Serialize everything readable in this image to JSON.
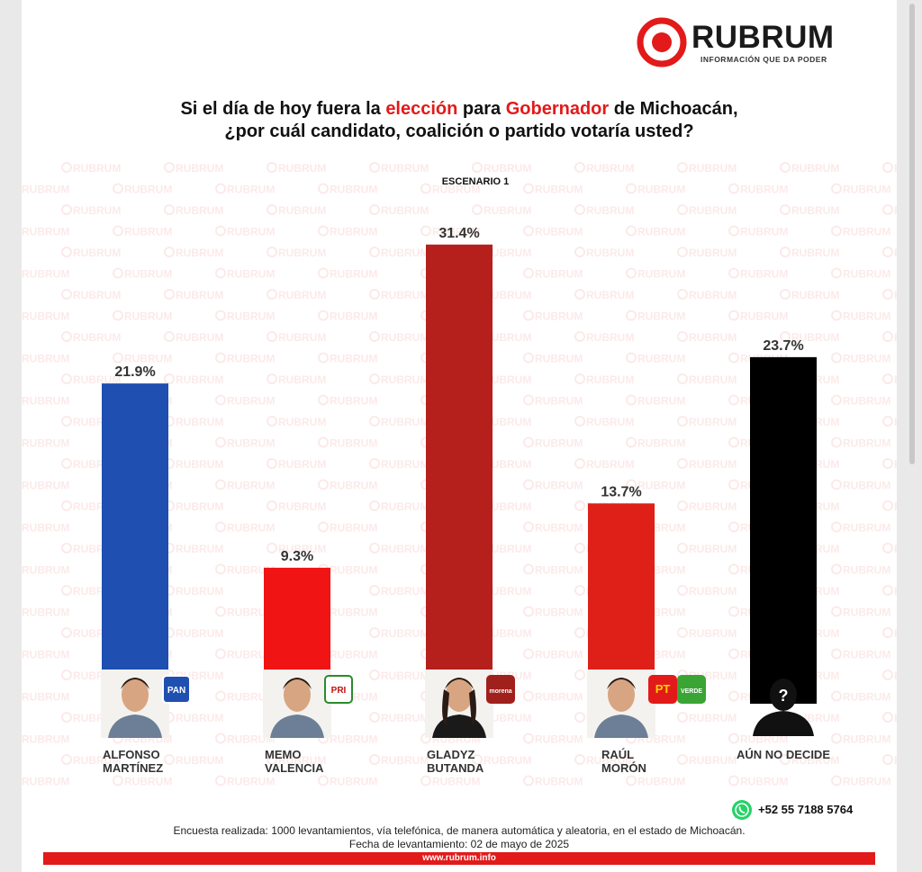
{
  "brand": {
    "name": "RUBRUM",
    "tagline": "INFORMACIÓN QUE DA PODER",
    "color": "#e21a1a"
  },
  "question": {
    "line1_pre": "Si el día de hoy fuera la ",
    "line1_hl1": "elección",
    "line1_mid": " para ",
    "line1_hl2": "Gobernador",
    "line1_post": " de Michoacán,",
    "line2": "¿por cuál candidato, coalición o partido votaría usted?"
  },
  "scenario": "ESCENARIO 1",
  "chart_data": {
    "type": "bar",
    "categories": [
      "ALFONSO MARTÍNEZ",
      "MEMO VALENCIA",
      "GLADYZ BUTANDA",
      "RAÚL MORÓN",
      "AÚN NO DECIDE"
    ],
    "values": [
      21.9,
      9.3,
      31.4,
      13.7,
      23.7
    ],
    "value_labels": [
      "21.9%",
      "9.3%",
      "31.4%",
      "13.7%",
      "23.7%"
    ],
    "name_lines": [
      [
        "ALFONSO",
        "MARTÍNEZ"
      ],
      [
        "MEMO",
        "VALENCIA"
      ],
      [
        "GLADYZ",
        "BUTANDA"
      ],
      [
        "RAÚL",
        "MORÓN"
      ],
      [
        "AÚN NO DECIDE"
      ]
    ],
    "colors": [
      "#1f4fb0",
      "#f01414",
      "#b5201c",
      "#df2018",
      "#000000"
    ],
    "party_logos": [
      [
        "PAN"
      ],
      [
        "PRI"
      ],
      [
        "morena"
      ],
      [
        "PT",
        "VERDE"
      ],
      []
    ],
    "grid": false,
    "legend": "none"
  },
  "contact": {
    "phone": "+52 55 7188 5764",
    "icon": "whatsapp-icon"
  },
  "notes": {
    "line1": "Encuesta realizada: 1000 levantamientos, vía telefónica, de manera automática y aleatoria, en el estado de Michoacán.",
    "line2": "Fecha de levantamiento: 02 de mayo de 2025"
  },
  "footer": {
    "url": "www.rubrum.info"
  }
}
